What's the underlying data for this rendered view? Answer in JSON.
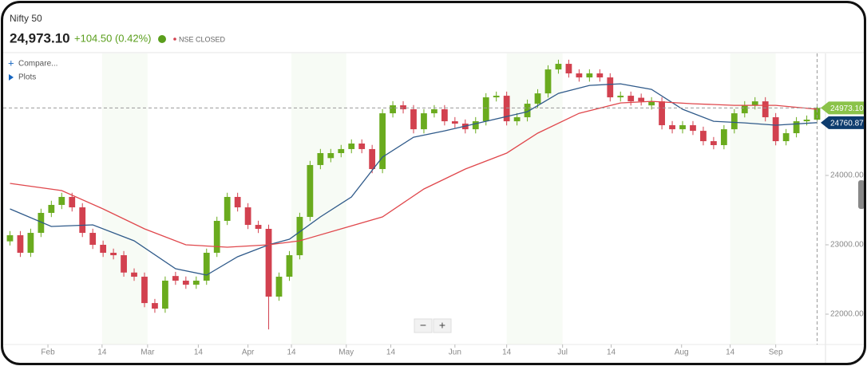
{
  "header": {
    "name": "Nifty 50",
    "price": "24,973.10",
    "change": "+104.50 (0.42%)",
    "status": "NSE CLOSED",
    "compare": "Compare...",
    "plots": "Plots"
  },
  "zoom": {
    "minus": "−",
    "plus": "+"
  },
  "chart_data": {
    "type": "candlestick",
    "up_color": "#6aab1e",
    "down_color": "#d2414f",
    "open": [
      23050,
      23138,
      22885,
      23172,
      23460,
      23575,
      23690,
      23540,
      23172,
      23000,
      22885,
      22850,
      22600,
      22540,
      22160,
      22080,
      22550,
      22483,
      22425,
      22483,
      22885,
      23345,
      23690,
      23540,
      23287,
      23230,
      22253,
      22540,
      22850,
      23402,
      24150,
      24250,
      24322,
      24380,
      24460,
      24380,
      24092,
      24896,
      25011,
      24954,
      24666,
      24896,
      24954,
      24781,
      24747,
      24666,
      24781,
      25126,
      25149,
      24781,
      24839,
      25034,
      25183,
      25528,
      25609,
      25471,
      25413,
      25471,
      25413,
      25126,
      25149,
      25120,
      25010,
      25068,
      24724,
      24666,
      24724,
      24643,
      24494,
      24437,
      24666,
      24896,
      25011,
      25068,
      24839,
      24494,
      24609,
      24781,
      24804
    ],
    "high": [
      23198,
      23198,
      23232,
      23520,
      23635,
      23750,
      23750,
      23600,
      23232,
      23060,
      22945,
      22910,
      22660,
      22600,
      22220,
      22543,
      22610,
      22543,
      22543,
      22945,
      23405,
      23750,
      23750,
      23600,
      23347,
      23290,
      22600,
      22910,
      23462,
      24210,
      24382,
      24382,
      24440,
      24520,
      24520,
      24440,
      24956,
      25071,
      25071,
      25014,
      24956,
      25014,
      25014,
      24841,
      24807,
      24841,
      25186,
      25209,
      25209,
      24899,
      25094,
      25243,
      25588,
      25669,
      25669,
      25531,
      25531,
      25531,
      25473,
      25209,
      25209,
      25180,
      25128,
      25128,
      24784,
      24784,
      24784,
      24703,
      24554,
      24726,
      24956,
      25071,
      25128,
      25128,
      24899,
      24669,
      24841,
      24864,
      25033
    ],
    "low": [
      22990,
      22825,
      22825,
      23112,
      23400,
      23515,
      23480,
      23112,
      22940,
      22825,
      22790,
      22540,
      22480,
      22100,
      22020,
      22020,
      22423,
      22365,
      22365,
      22423,
      22825,
      23285,
      23480,
      23227,
      23170,
      21780,
      22193,
      22480,
      22790,
      23342,
      24090,
      24190,
      24262,
      24320,
      24320,
      24032,
      24032,
      24836,
      24894,
      24606,
      24606,
      24836,
      24721,
      24687,
      24606,
      24606,
      24721,
      25066,
      24721,
      24721,
      24779,
      24974,
      25123,
      25468,
      25411,
      25353,
      25353,
      25353,
      25066,
      25066,
      25008,
      25008,
      24950,
      24664,
      24606,
      24606,
      24583,
      24434,
      24377,
      24377,
      24606,
      24836,
      24951,
      24779,
      24434,
      24434,
      24549,
      24721,
      24744
    ],
    "close": [
      23138,
      22885,
      23172,
      23460,
      23575,
      23690,
      23540,
      23172,
      23000,
      22885,
      22850,
      22600,
      22540,
      22160,
      22080,
      22483,
      22483,
      22425,
      22483,
      22885,
      23345,
      23690,
      23540,
      23287,
      23230,
      22253,
      22540,
      22850,
      23402,
      24150,
      24322,
      24322,
      24380,
      24460,
      24380,
      24092,
      24896,
      25011,
      24954,
      24666,
      24896,
      24954,
      24781,
      24747,
      24666,
      24781,
      25126,
      25149,
      24781,
      24839,
      25034,
      25183,
      25528,
      25609,
      25471,
      25413,
      25471,
      25413,
      25126,
      25149,
      25068,
      25068,
      25068,
      24724,
      24666,
      24724,
      24643,
      24494,
      24437,
      24666,
      24896,
      25011,
      25068,
      24839,
      24494,
      24609,
      24781,
      24804,
      24973.1
    ],
    "series": [
      {
        "color": "#2f5a8a",
        "x": [
          0,
          4,
          8,
          12,
          16,
          19,
          22,
          25,
          27,
          30,
          33,
          36,
          39,
          42,
          46,
          50,
          53,
          56,
          59,
          62,
          65,
          68,
          71,
          74,
          78
        ],
        "values": [
          23517,
          23264,
          23287,
          23057,
          22655,
          22563,
          22828,
          23000,
          23080,
          23402,
          23690,
          24264,
          24551,
          24643,
          24781,
          24919,
          25183,
          25298,
          25321,
          25241,
          24954,
          24781,
          24758,
          24724,
          24760.87
        ]
      },
      {
        "color": "#e0474c",
        "x": [
          0,
          5,
          9,
          13,
          17,
          21,
          25,
          28,
          32,
          36,
          40,
          44,
          48,
          51,
          55,
          59,
          62,
          66,
          70,
          74,
          78
        ],
        "values": [
          23885,
          23782,
          23517,
          23230,
          23000,
          22966,
          23000,
          23057,
          23230,
          23402,
          23805,
          24092,
          24322,
          24609,
          24896,
          25045,
          25068,
          25034,
          25011,
          25011,
          24954
        ]
      }
    ],
    "price_tags": [
      {
        "value": 24973.1,
        "label": "24973.10",
        "color": "#8bc34a"
      },
      {
        "value": 24760.87,
        "label": "24760.87",
        "color": "#0d3c6e"
      }
    ],
    "xlim": [
      -0.5,
      78.5
    ],
    "xticks": [
      {
        "value": 3.67,
        "label": "Feb"
      },
      {
        "value": 8.9,
        "label": "14"
      },
      {
        "value": 13.3,
        "label": "Mar"
      },
      {
        "value": 18.2,
        "label": "14"
      },
      {
        "value": 23.0,
        "label": "Apr"
      },
      {
        "value": 27.2,
        "label": "14"
      },
      {
        "value": 32.5,
        "label": "May"
      },
      {
        "value": 36.8,
        "label": "14"
      },
      {
        "value": 43.0,
        "label": "Jun"
      },
      {
        "value": 48.0,
        "label": "14"
      },
      {
        "value": 53.4,
        "label": "Jul"
      },
      {
        "value": 58.1,
        "label": "14"
      },
      {
        "value": 64.9,
        "label": "Aug"
      },
      {
        "value": 69.6,
        "label": "14"
      },
      {
        "value": 74.0,
        "label": "Sep"
      }
    ],
    "ylim": [
      21563,
      25759
    ],
    "yticks": [
      {
        "value": 22000,
        "label": "22000.00"
      },
      {
        "value": 23000,
        "label": "23000.00"
      },
      {
        "value": 24000,
        "label": "24000.00"
      }
    ]
  }
}
